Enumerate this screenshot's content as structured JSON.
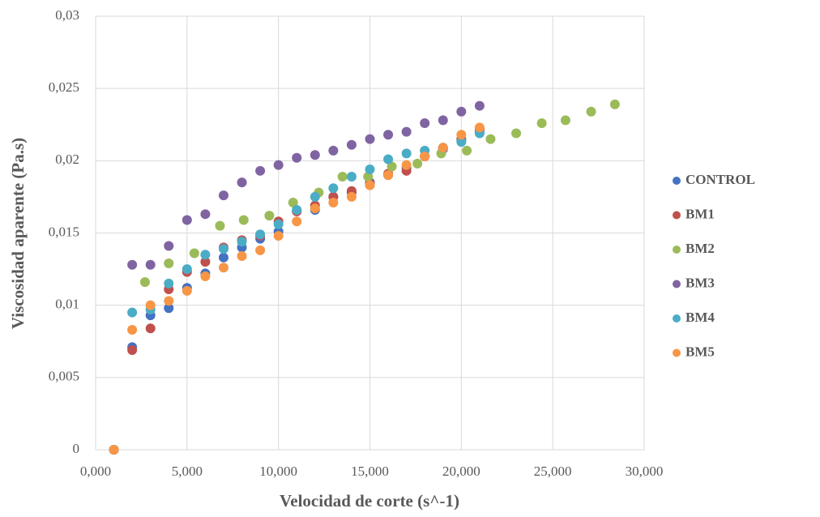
{
  "chart_data": {
    "type": "scatter",
    "x_label": "Velocidad de corte (s^-1)",
    "y_label": "Viscosidad aparente (Pa.s)",
    "xlim": [
      0,
      30000
    ],
    "ylim": [
      0,
      0.03
    ],
    "xticks": [
      {
        "value": 0,
        "label": "0,000"
      },
      {
        "value": 5000,
        "label": "5,000"
      },
      {
        "value": 10000,
        "label": "10,000"
      },
      {
        "value": 15000,
        "label": "15,000"
      },
      {
        "value": 20000,
        "label": "20,000"
      },
      {
        "value": 25000,
        "label": "25,000"
      },
      {
        "value": 30000,
        "label": "30,000"
      }
    ],
    "yticks": [
      0,
      {
        "value": 0.005,
        "label": "0,005"
      },
      {
        "value": 0.01,
        "label": "0,01"
      },
      {
        "value": 0.015,
        "label": "0,015"
      },
      {
        "value": 0.02,
        "label": "0,02"
      },
      {
        "value": 0.025,
        "label": "0,025"
      },
      {
        "value": 0.03,
        "label": "0,03"
      }
    ],
    "grid": true,
    "legend": "right",
    "series": [
      {
        "name": "CONTROL",
        "color": "#4472c4",
        "x": [
          1000,
          2000,
          3000,
          4000,
          5000,
          6000,
          7000,
          8000,
          9000,
          10000,
          11000,
          12000,
          13000,
          14000,
          15000,
          16000,
          17000,
          18000,
          19000,
          20000,
          21000
        ],
        "values": [
          0,
          0.0071,
          0.0093,
          0.0098,
          0.0112,
          0.0122,
          0.0133,
          0.014,
          0.0146,
          0.0151,
          0.0165,
          0.0166,
          0.0175,
          0.0178,
          0.0185,
          0.019,
          0.0195,
          0.0203,
          0.0208,
          0.0214,
          0.022
        ]
      },
      {
        "name": "BM1",
        "color": "#c0504d",
        "x": [
          1000,
          2000,
          3000,
          4000,
          5000,
          6000,
          7000,
          8000,
          9000,
          10000,
          11000,
          12000,
          13000,
          14000,
          15000,
          16000,
          17000,
          18000,
          19000,
          20000,
          21000
        ],
        "values": [
          0,
          0.0069,
          0.0084,
          0.0111,
          0.0123,
          0.013,
          0.014,
          0.0145,
          0.0148,
          0.0158,
          0.0165,
          0.0169,
          0.0175,
          0.0179,
          0.0184,
          0.0191,
          0.0193,
          0.0203,
          0.0209,
          0.0215,
          0.0222
        ]
      },
      {
        "name": "BM2",
        "color": "#9bbb59",
        "x": [
          1000,
          2700,
          4000,
          5400,
          6800,
          8100,
          9500,
          10800,
          12200,
          13500,
          14900,
          16200,
          17600,
          18900,
          20300,
          21600,
          23000,
          24400,
          25700,
          27100,
          28400
        ],
        "values": [
          0,
          0.0116,
          0.0129,
          0.0136,
          0.0155,
          0.0159,
          0.0162,
          0.0171,
          0.0178,
          0.0189,
          0.0189,
          0.0196,
          0.0198,
          0.0205,
          0.0207,
          0.0215,
          0.0219,
          0.0226,
          0.0228,
          0.0234,
          0.0239
        ]
      },
      {
        "name": "BM3",
        "color": "#8064a2",
        "x": [
          1000,
          2000,
          3000,
          4000,
          5000,
          6000,
          7000,
          8000,
          9000,
          10000,
          11000,
          12000,
          13000,
          14000,
          15000,
          16000,
          17000,
          18000,
          19000,
          20000,
          21000
        ],
        "values": [
          0,
          0.0128,
          0.0128,
          0.0141,
          0.0159,
          0.0163,
          0.0176,
          0.0185,
          0.0193,
          0.0197,
          0.0202,
          0.0204,
          0.0207,
          0.0211,
          0.0215,
          0.0218,
          0.022,
          0.0226,
          0.0228,
          0.0234,
          0.0238
        ]
      },
      {
        "name": "BM4",
        "color": "#4bacc6",
        "x": [
          1000,
          2000,
          3000,
          4000,
          5000,
          6000,
          7000,
          8000,
          9000,
          10000,
          11000,
          12000,
          13000,
          14000,
          15000,
          16000,
          17000,
          18000,
          19000,
          20000,
          21000
        ],
        "values": [
          0,
          0.0095,
          0.0097,
          0.0115,
          0.0125,
          0.0135,
          0.0139,
          0.0144,
          0.0149,
          0.0156,
          0.0166,
          0.0175,
          0.0181,
          0.0189,
          0.0194,
          0.0201,
          0.0205,
          0.0207,
          0.0209,
          0.0213,
          0.0219
        ]
      },
      {
        "name": "BM5",
        "color": "#f79646",
        "x": [
          1000,
          2000,
          3000,
          4000,
          5000,
          6000,
          7000,
          8000,
          9000,
          10000,
          11000,
          12000,
          13000,
          14000,
          15000,
          16000,
          17000,
          18000,
          19000,
          20000,
          21000
        ],
        "values": [
          0,
          0.0083,
          0.01,
          0.0103,
          0.011,
          0.012,
          0.0126,
          0.0134,
          0.0138,
          0.0148,
          0.0158,
          0.0167,
          0.0171,
          0.0175,
          0.0183,
          0.019,
          0.0197,
          0.0203,
          0.0209,
          0.0218,
          0.0223
        ]
      }
    ]
  }
}
